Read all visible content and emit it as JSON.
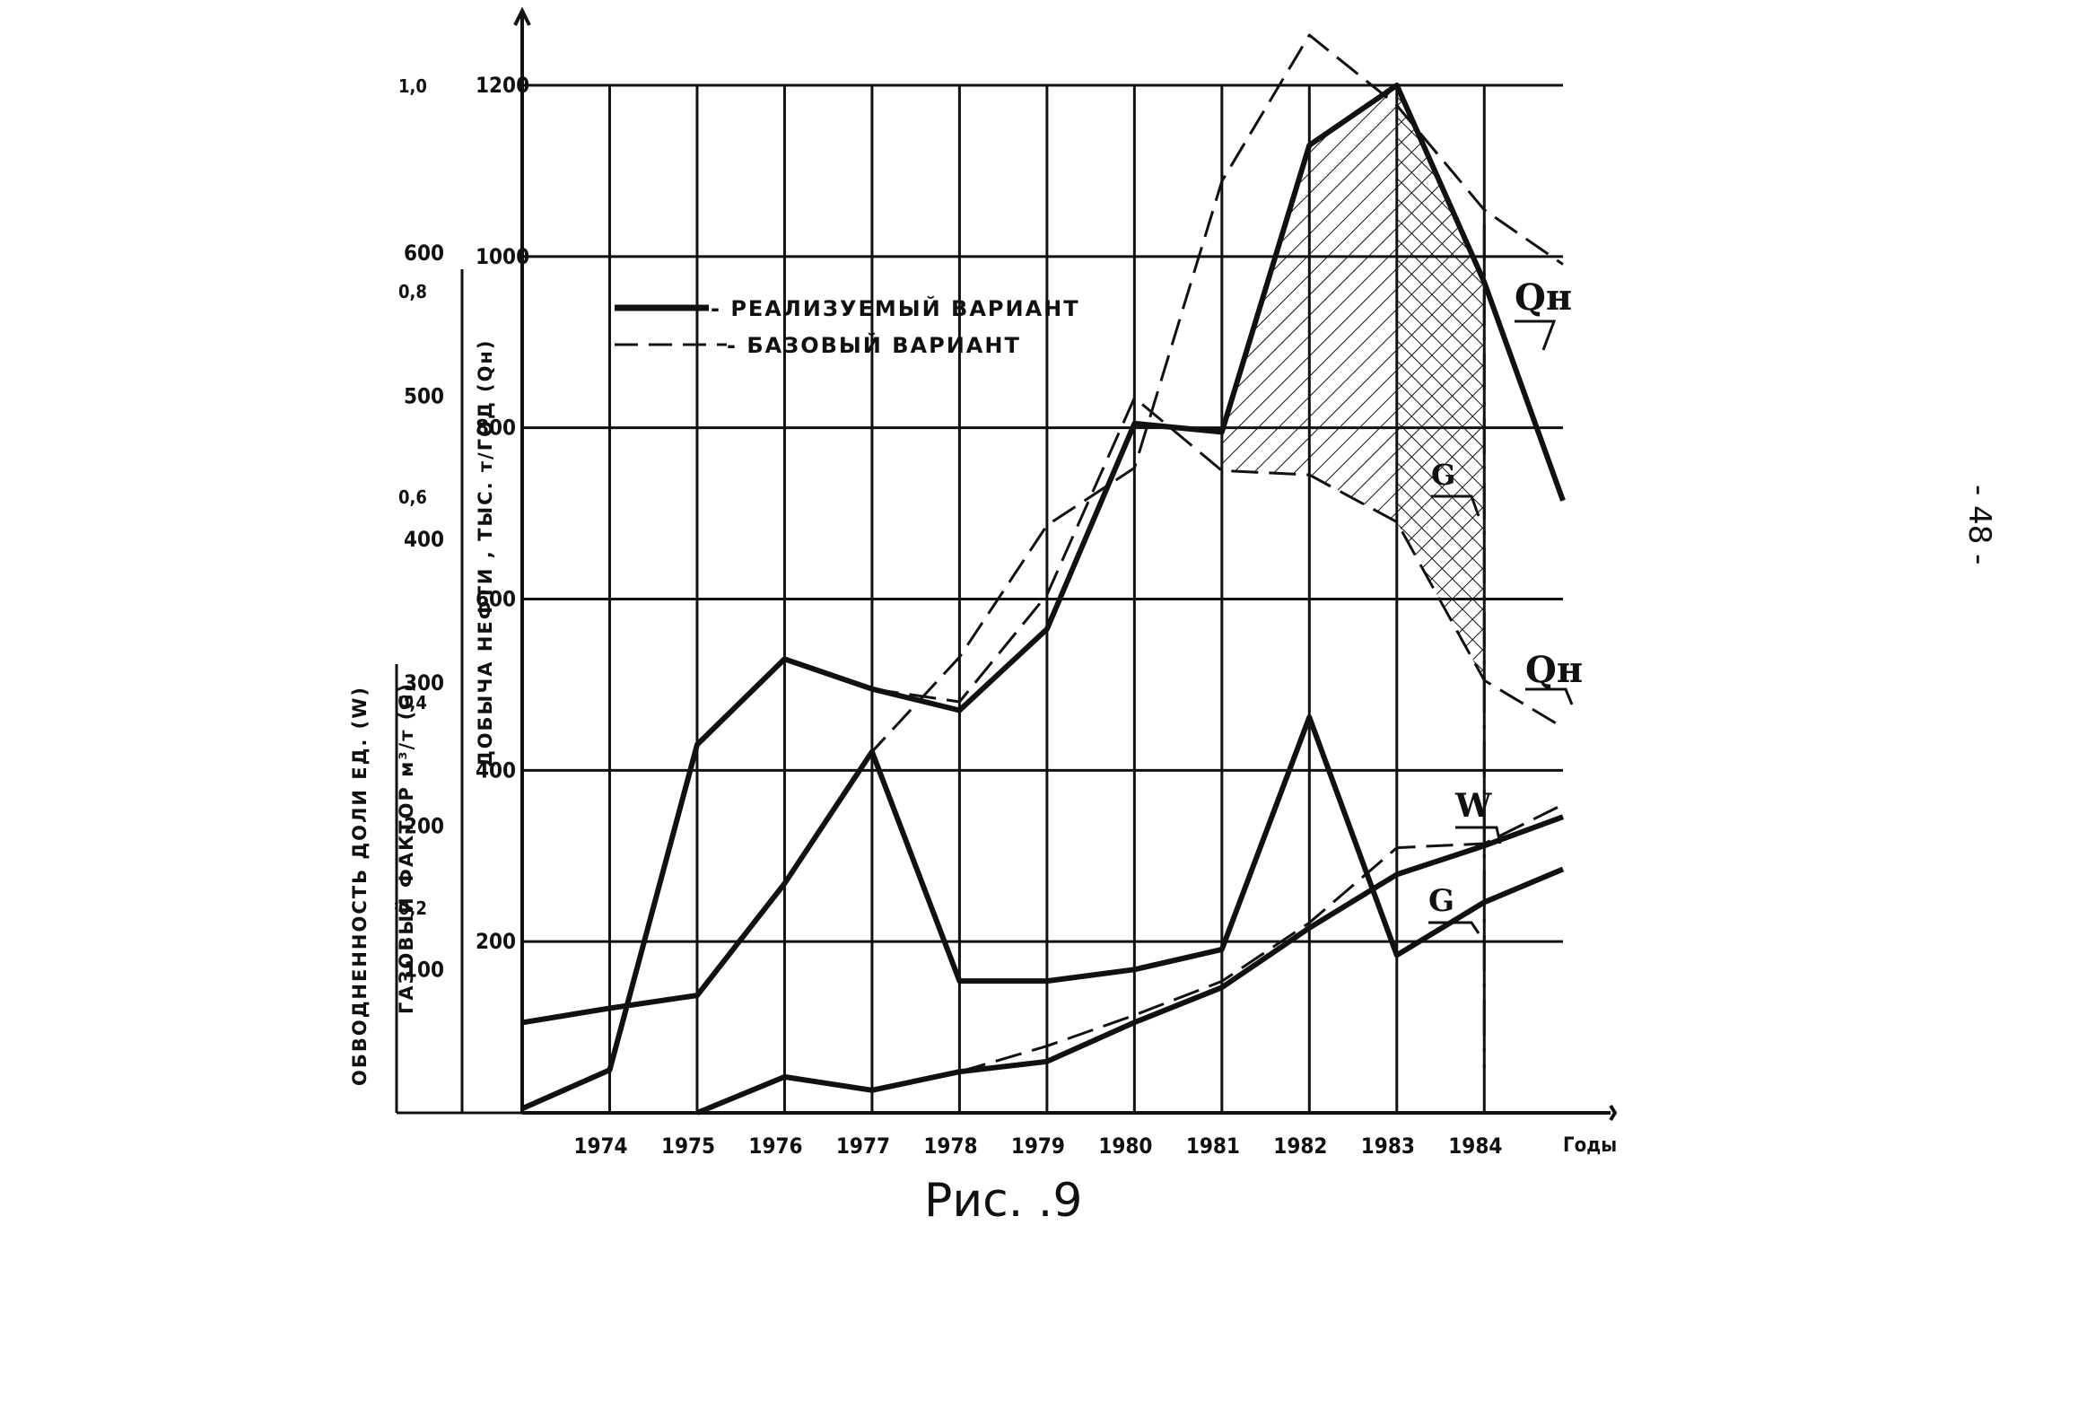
{
  "page": {
    "caption": "Рис. .9",
    "page_number": "- 48 -"
  },
  "chart_data": {
    "type": "line",
    "legend": {
      "position": "upper-left-inside",
      "entries": [
        {
          "label": "- РЕАЛИЗУЕМЫЙ ВАРИАНТ",
          "style": "solid"
        },
        {
          "label": "- БАЗОВЫЙ ВАРИАНТ",
          "style": "dashed"
        }
      ]
    },
    "x_axis": {
      "label": "Годы",
      "ticks": [
        "1974",
        "1975",
        "1976",
        "1977",
        "1978",
        "1979",
        "1980",
        "1981",
        "1982",
        "1983",
        "1984"
      ],
      "range": [
        1973,
        1984.9
      ]
    },
    "y_axes": [
      {
        "id": "oil",
        "label": "ДОБЫЧА НЕФТИ , ТЫС. т/ГОД (Qн)",
        "range": [
          0,
          1200
        ],
        "ticks": [
          "200",
          "400",
          "600",
          "800",
          "1000",
          "1200"
        ],
        "tick_values": [
          200,
          400,
          600,
          800,
          1000,
          1200
        ]
      },
      {
        "id": "gas",
        "label": "ГАЗОВЫЙ ФАКТОР м³/т (G)",
        "range": [
          0,
          717
        ],
        "ticks": [
          "100",
          "200",
          "300",
          "400",
          "500",
          "600"
        ],
        "tick_values": [
          100,
          200,
          300,
          400,
          500,
          600
        ]
      },
      {
        "id": "water",
        "label": "ОБВОДНЕННОСТЬ ДОЛИ ЕД. (W)",
        "range": [
          0,
          1.0
        ],
        "ticks": [
          "0,2",
          "0,4",
          "0,6",
          "0,8",
          "1,0"
        ],
        "tick_values": [
          0.2,
          0.4,
          0.6,
          0.8,
          1.0
        ]
      }
    ],
    "grid": true,
    "series": [
      {
        "name": "Qн",
        "axis": "oil",
        "style": "solid",
        "x": [
          1973,
          1974,
          1975,
          1976,
          1977,
          1978,
          1979,
          1980,
          1981,
          1982,
          1983,
          1984,
          1984.9
        ],
        "y": [
          5,
          50,
          430,
          530,
          495,
          470,
          565,
          805,
          795,
          1130,
          1200,
          970,
          715
        ]
      },
      {
        "name": "Qн",
        "axis": "oil",
        "style": "dashed",
        "x": [
          1977,
          1978,
          1979,
          1980,
          1981,
          1982,
          1983,
          1984,
          1984.9
        ],
        "y": [
          495,
          480,
          605,
          835,
          750,
          745,
          690,
          505,
          450
        ]
      },
      {
        "name": "G",
        "axis": "gas",
        "style": "solid",
        "x": [
          1973,
          1974,
          1975,
          1976,
          1977,
          1978,
          1979,
          1980,
          1981,
          1982,
          1983,
          1984,
          1984.9
        ],
        "y": [
          63,
          73,
          82,
          160,
          252,
          92,
          92,
          100,
          114,
          276,
          110,
          147,
          170
        ]
      },
      {
        "name": "G",
        "axis": "gas",
        "style": "dashed",
        "x": [
          1976,
          1977,
          1978,
          1979,
          1980,
          1981,
          1982,
          1983,
          1984,
          1984.9
        ],
        "y": [
          160,
          252,
          318,
          410,
          450,
          650,
          752,
          703,
          630,
          592
        ]
      },
      {
        "name": "W",
        "axis": "water",
        "style": "solid",
        "x": [
          1975,
          1976,
          1977,
          1978,
          1979,
          1980,
          1981,
          1982,
          1983,
          1984,
          1984.9
        ],
        "y": [
          0.0,
          0.035,
          0.022,
          0.04,
          0.05,
          0.088,
          0.122,
          0.18,
          0.232,
          0.26,
          0.288
        ]
      },
      {
        "name": "W",
        "axis": "water",
        "style": "dashed",
        "x": [
          1978,
          1979,
          1980,
          1981,
          1982,
          1983,
          1984,
          1984.9
        ],
        "y": [
          0.04,
          0.065,
          0.095,
          0.128,
          0.185,
          0.258,
          0.262,
          0.3
        ]
      }
    ],
    "curve_labels": [
      "Qн",
      "Qн",
      "G",
      "G",
      "W"
    ]
  }
}
